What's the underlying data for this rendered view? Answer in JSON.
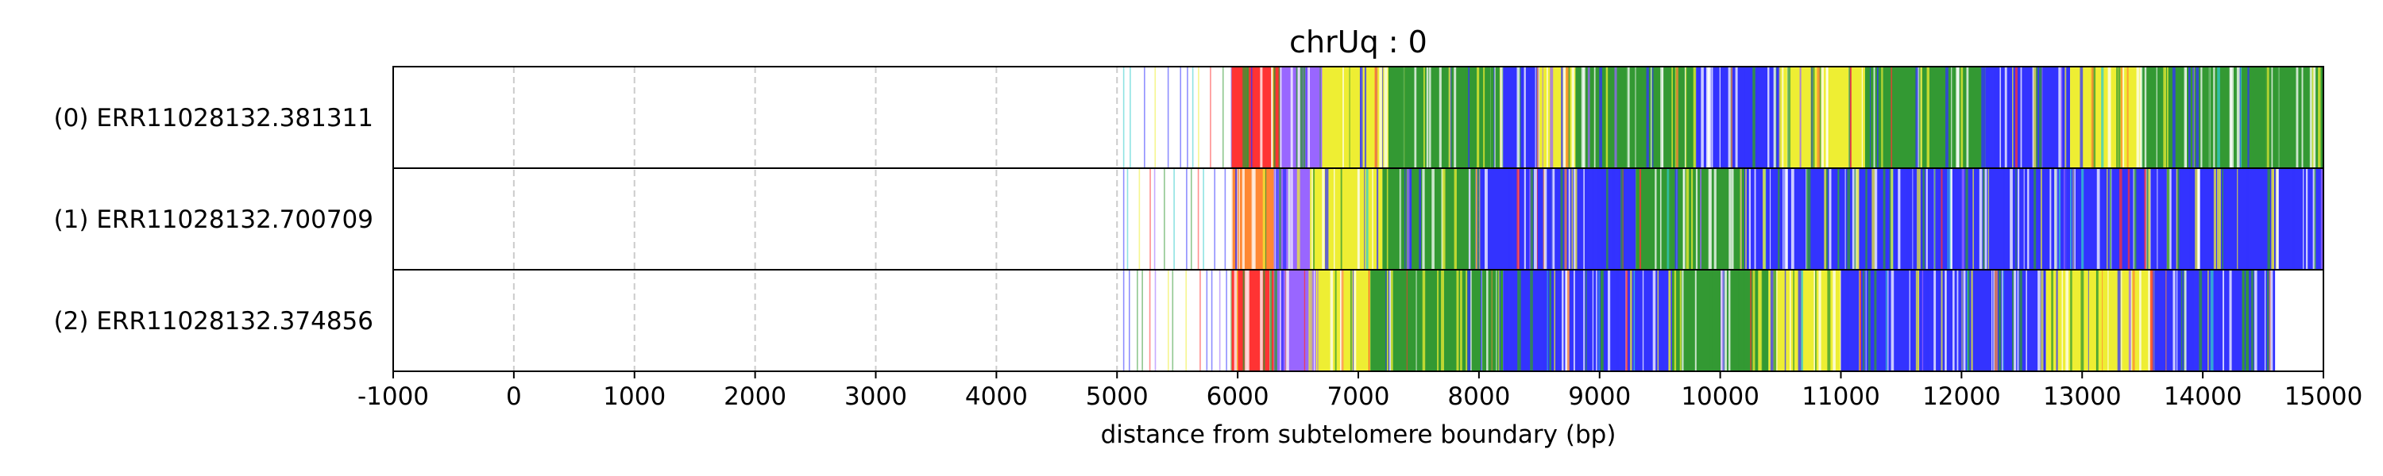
{
  "chart_data": {
    "type": "track-plot",
    "title": "chrUq : 0",
    "xlabel": "distance from subtelomere boundary (bp)",
    "xlim": [
      -1000,
      15000
    ],
    "xticks": [
      -1000,
      0,
      1000,
      2000,
      3000,
      4000,
      5000,
      6000,
      7000,
      8000,
      9000,
      10000,
      11000,
      12000,
      13000,
      14000,
      15000
    ],
    "grid": "vertical dashed at tick positions",
    "colors": {
      "blue": "#3333ff",
      "green": "#339933",
      "yellow": "#eeee33",
      "red": "#ff3333",
      "orange": "#ff8833",
      "purple": "#9966ff",
      "cyan": "#33cccc",
      "grid": "#cccccc",
      "frame": "#000000"
    },
    "tracks": [
      {
        "label": "(0) ERR11028132.381311",
        "read_start": 5050,
        "read_end": 15000,
        "segments": [
          {
            "start": 5050,
            "end": 5950,
            "color": "mixed-sparse"
          },
          {
            "start": 5950,
            "end": 6350,
            "color": "red"
          },
          {
            "start": 6350,
            "end": 6700,
            "color": "purple"
          },
          {
            "start": 6700,
            "end": 7250,
            "color": "yellow"
          },
          {
            "start": 7250,
            "end": 8200,
            "color": "green"
          },
          {
            "start": 8200,
            "end": 8500,
            "color": "blue"
          },
          {
            "start": 8500,
            "end": 8800,
            "color": "yellow"
          },
          {
            "start": 8800,
            "end": 9800,
            "color": "green"
          },
          {
            "start": 9800,
            "end": 10500,
            "color": "blue"
          },
          {
            "start": 10500,
            "end": 11200,
            "color": "yellow"
          },
          {
            "start": 11200,
            "end": 12200,
            "color": "green"
          },
          {
            "start": 12200,
            "end": 12900,
            "color": "blue"
          },
          {
            "start": 12900,
            "end": 13500,
            "color": "yellow"
          },
          {
            "start": 13500,
            "end": 15000,
            "color": "green"
          }
        ]
      },
      {
        "label": "(1) ERR11028132.700709",
        "read_start": 5050,
        "read_end": 15000,
        "segments": [
          {
            "start": 5050,
            "end": 5950,
            "color": "mixed-sparse"
          },
          {
            "start": 5950,
            "end": 6300,
            "color": "orange"
          },
          {
            "start": 6300,
            "end": 6600,
            "color": "purple"
          },
          {
            "start": 6600,
            "end": 7200,
            "color": "yellow"
          },
          {
            "start": 7200,
            "end": 8000,
            "color": "green"
          },
          {
            "start": 8000,
            "end": 9300,
            "color": "blue"
          },
          {
            "start": 9300,
            "end": 10200,
            "color": "green"
          },
          {
            "start": 10200,
            "end": 15000,
            "color": "blue"
          }
        ]
      },
      {
        "label": "(2) ERR11028132.374856",
        "read_start": 5050,
        "read_end": 14600,
        "segments": [
          {
            "start": 5050,
            "end": 5950,
            "color": "mixed-sparse"
          },
          {
            "start": 5950,
            "end": 6300,
            "color": "red"
          },
          {
            "start": 6300,
            "end": 6650,
            "color": "purple"
          },
          {
            "start": 6650,
            "end": 7100,
            "color": "yellow"
          },
          {
            "start": 7100,
            "end": 8200,
            "color": "green"
          },
          {
            "start": 8200,
            "end": 9600,
            "color": "blue"
          },
          {
            "start": 9600,
            "end": 10400,
            "color": "green"
          },
          {
            "start": 10400,
            "end": 11000,
            "color": "yellow"
          },
          {
            "start": 11000,
            "end": 12700,
            "color": "blue"
          },
          {
            "start": 12700,
            "end": 13600,
            "color": "yellow"
          },
          {
            "start": 13600,
            "end": 14600,
            "color": "blue"
          }
        ]
      }
    ]
  }
}
